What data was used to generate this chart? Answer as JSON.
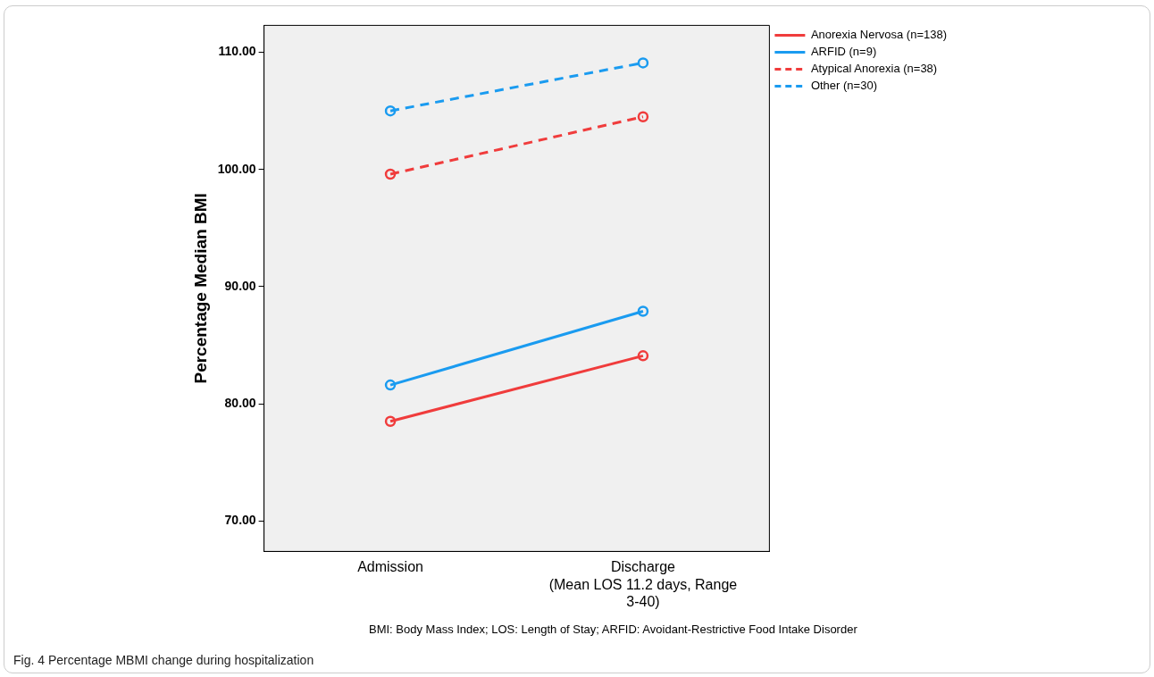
{
  "chart_data": {
    "type": "line",
    "title": "Fig. 4 Percentage MBMI change during hospitalization",
    "ylabel": "Percentage Median BMI",
    "categories": [
      "Admission",
      "Discharge\n(Mean LOS 11.2 days, Range\n3-40)"
    ],
    "series": [
      {
        "name": "Anorexia Nervosa (n=138)",
        "color": "#f03c3c",
        "line_style": "solid",
        "values": [
          78.5,
          84.1
        ]
      },
      {
        "name": "ARFID (n=9)",
        "color": "#1a9bf0",
        "line_style": "solid",
        "values": [
          81.6,
          87.9
        ]
      },
      {
        "name": "Atypical Anorexia (n=38)",
        "color": "#f03c3c",
        "line_style": "dashed",
        "values": [
          99.6,
          104.5
        ]
      },
      {
        "name": "Other (n=30)",
        "color": "#1a9bf0",
        "line_style": "dashed",
        "values": [
          105.0,
          109.1
        ]
      }
    ],
    "ylim": [
      67.4,
      112.3
    ],
    "yticks": [
      {
        "value": 70,
        "label": "70.00"
      },
      {
        "value": 80,
        "label": "80.00"
      },
      {
        "value": 90,
        "label": "90.00"
      },
      {
        "value": 100,
        "label": "100.00"
      },
      {
        "value": 110,
        "label": "110.00"
      }
    ],
    "marker": "circle",
    "grid": false,
    "legend": "right",
    "annotations": [
      "BMI: Body Mass Index; LOS: Length of Stay; ARFID: Avoidant-Restrictive Food Intake Disorder"
    ]
  }
}
